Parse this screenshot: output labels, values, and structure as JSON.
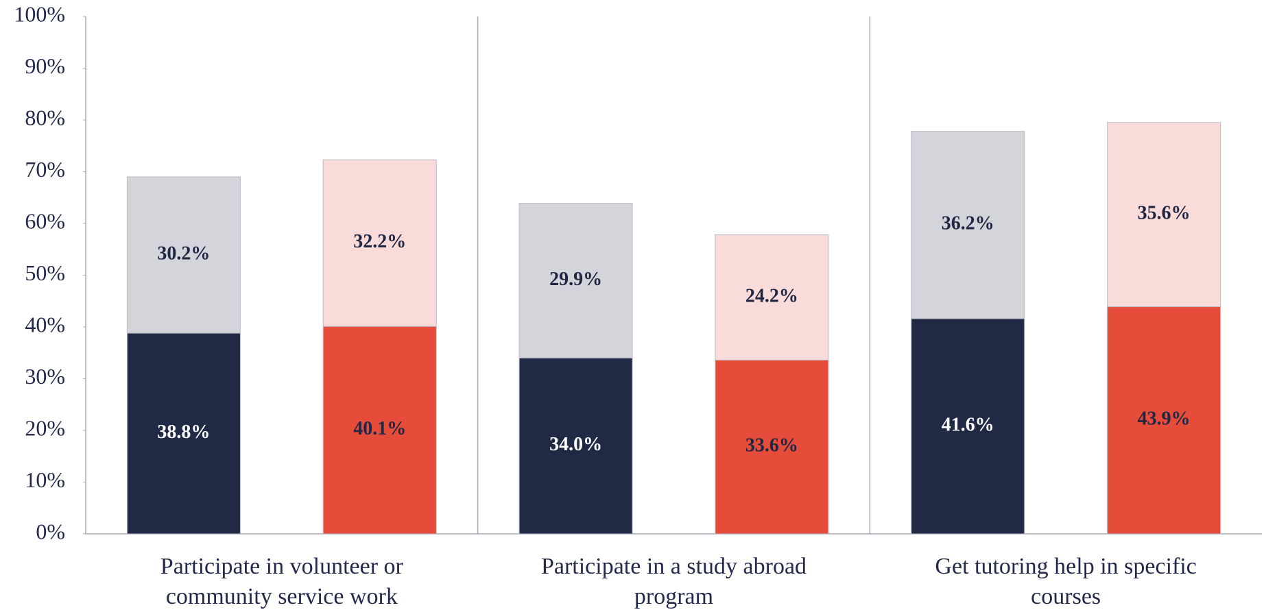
{
  "chart_data": {
    "type": "stacked-bar",
    "categories": [
      "Participate in volunteer or community service work",
      "Participate in a study abroad program",
      "Get tutoring help in specific courses"
    ],
    "series": [
      {
        "stack": 0,
        "color": "#212a45",
        "label_color": "#ffffff",
        "values": [
          38.8,
          34.0,
          41.6
        ],
        "value_labels": [
          "38.8%",
          "34.0%",
          "41.6%"
        ]
      },
      {
        "stack": 0,
        "color": "#d4d5da",
        "label_color": "#1f2744",
        "values": [
          30.2,
          29.9,
          36.2
        ],
        "value_labels": [
          "30.2%",
          "29.9%",
          "36.2%"
        ]
      },
      {
        "stack": 1,
        "color": "#e54c3a",
        "label_color": "#1f2744",
        "values": [
          40.1,
          33.6,
          43.9
        ],
        "value_labels": [
          "40.1%",
          "33.6%",
          "43.9%"
        ]
      },
      {
        "stack": 1,
        "color": "#f9dcd9",
        "label_color": "#1f2744",
        "values": [
          32.2,
          24.2,
          35.6
        ],
        "value_labels": [
          "32.2%",
          "24.2%",
          "35.6%"
        ]
      }
    ],
    "ylim": [
      0,
      100
    ],
    "yticks": [
      {
        "value": 0,
        "label": "0%"
      },
      {
        "value": 10,
        "label": "10%"
      },
      {
        "value": 20,
        "label": "20%"
      },
      {
        "value": 30,
        "label": "30%"
      },
      {
        "value": 40,
        "label": "40%"
      },
      {
        "value": 50,
        "label": "50%"
      },
      {
        "value": 60,
        "label": "60%"
      },
      {
        "value": 70,
        "label": "70%"
      },
      {
        "value": 80,
        "label": "80%"
      },
      {
        "value": 90,
        "label": "90%"
      },
      {
        "value": 100,
        "label": "100%"
      }
    ]
  }
}
